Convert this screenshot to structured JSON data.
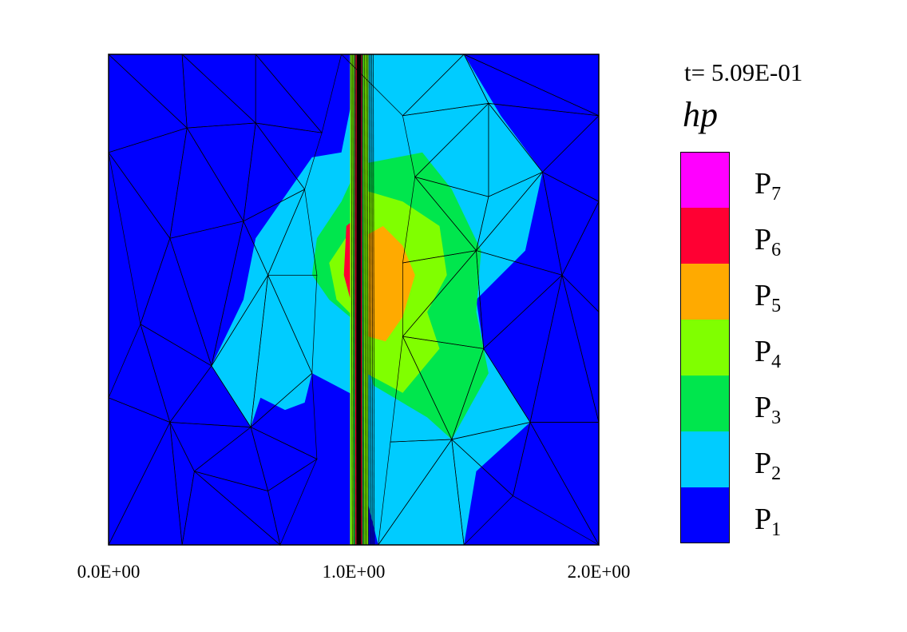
{
  "chart_data": {
    "type": "heatmap",
    "title": "",
    "time_label": "t= 5.09E-01",
    "variable_label": "hp",
    "xlim": [
      0,
      2
    ],
    "ylim": [
      0,
      2
    ],
    "x_ticks": [
      {
        "value": 0,
        "label": "0.0E+00"
      },
      {
        "value": 1,
        "label": "1.0E+00"
      },
      {
        "value": 2,
        "label": "2.0E+00"
      }
    ],
    "legend": [
      {
        "level": 7,
        "base": "P",
        "sub": "7",
        "color": "#ff00ff"
      },
      {
        "level": 6,
        "base": "P",
        "sub": "6",
        "color": "#ff0033"
      },
      {
        "level": 5,
        "base": "P",
        "sub": "5",
        "color": "#ffaa00"
      },
      {
        "level": 4,
        "base": "P",
        "sub": "4",
        "color": "#80ff00"
      },
      {
        "level": 3,
        "base": "P",
        "sub": "3",
        "color": "#00e64d"
      },
      {
        "level": 2,
        "base": "P",
        "sub": "2",
        "color": "#00ccff"
      },
      {
        "level": 1,
        "base": "P",
        "sub": "1",
        "color": "#0000ff"
      }
    ],
    "regions": [
      {
        "level": 2,
        "points": [
          [
            1.01,
            2
          ],
          [
            1.45,
            2
          ],
          [
            1.6,
            1.75
          ],
          [
            1.77,
            1.52
          ],
          [
            1.7,
            1.2
          ],
          [
            1.5,
            1.0
          ],
          [
            1.53,
            0.8
          ],
          [
            1.72,
            0.5
          ],
          [
            1.5,
            0.3
          ],
          [
            1.45,
            0
          ],
          [
            1.1,
            0
          ],
          [
            1.05,
            0.2
          ],
          [
            1.02,
            0.6
          ],
          [
            0.83,
            0.7
          ],
          [
            0.8,
            0.58
          ],
          [
            0.72,
            0.55
          ],
          [
            0.62,
            0.6
          ],
          [
            0.58,
            0.48
          ],
          [
            0.42,
            0.73
          ],
          [
            0.55,
            1.0
          ],
          [
            0.6,
            1.25
          ],
          [
            0.83,
            1.58
          ],
          [
            0.95,
            1.6
          ],
          [
            1.0,
            1.85
          ]
        ]
      },
      {
        "level": 3,
        "points": [
          [
            1.02,
            1.55
          ],
          [
            1.28,
            1.6
          ],
          [
            1.4,
            1.45
          ],
          [
            1.52,
            1.2
          ],
          [
            1.5,
            0.95
          ],
          [
            1.55,
            0.7
          ],
          [
            1.4,
            0.43
          ],
          [
            1.3,
            0.52
          ],
          [
            1.08,
            0.65
          ],
          [
            1.02,
            0.9
          ],
          [
            0.9,
            1.0
          ],
          [
            0.83,
            1.1
          ],
          [
            0.85,
            1.25
          ],
          [
            0.95,
            1.4
          ]
        ]
      },
      {
        "level": 4,
        "points": [
          [
            1.03,
            1.45
          ],
          [
            1.2,
            1.4
          ],
          [
            1.35,
            1.3
          ],
          [
            1.38,
            1.1
          ],
          [
            1.3,
            0.95
          ],
          [
            1.35,
            0.8
          ],
          [
            1.2,
            0.62
          ],
          [
            1.05,
            0.7
          ],
          [
            1.03,
            0.9
          ],
          [
            0.93,
            1.0
          ],
          [
            0.9,
            1.15
          ],
          [
            1.0,
            1.3
          ]
        ]
      },
      {
        "level": 5,
        "points": [
          [
            1.03,
            1.25
          ],
          [
            1.12,
            1.3
          ],
          [
            1.2,
            1.22
          ],
          [
            1.25,
            1.1
          ],
          [
            1.2,
            0.93
          ],
          [
            1.13,
            0.83
          ],
          [
            1.06,
            0.85
          ],
          [
            1.02,
            1.0
          ],
          [
            1.0,
            1.1
          ]
        ]
      },
      {
        "level": 6,
        "points": [
          [
            0.97,
            1.3
          ],
          [
            1.03,
            1.35
          ],
          [
            1.04,
            1.1
          ],
          [
            1.05,
            0.95
          ],
          [
            1.04,
            0.85
          ],
          [
            1.0,
            0.95
          ],
          [
            0.96,
            1.1
          ]
        ]
      }
    ],
    "strips": [
      {
        "level": 4,
        "x": [
          0.985,
          1.06
        ]
      },
      {
        "level": 3,
        "x": [
          1.0,
          1.04
        ]
      },
      {
        "level": 6,
        "x": [
          1.005,
          1.035
        ]
      }
    ]
  }
}
